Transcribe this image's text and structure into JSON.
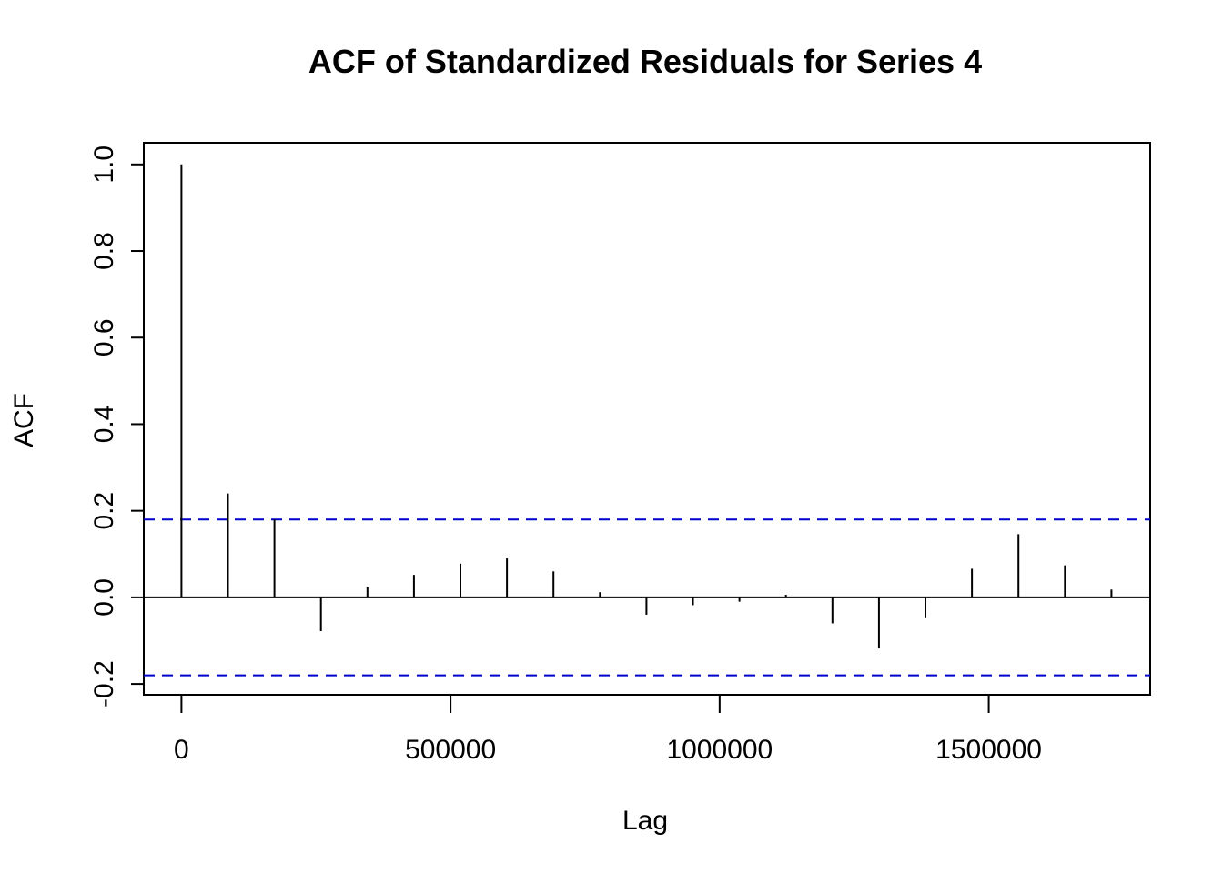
{
  "chart_data": {
    "type": "bar",
    "title": "ACF of Standardized Residuals for Series 4",
    "xlabel": "Lag",
    "ylabel": "ACF",
    "xlim": [
      -70000,
      1800000
    ],
    "ylim": [
      -0.225,
      1.05
    ],
    "x_ticks": [
      0,
      500000,
      1000000,
      1500000
    ],
    "x_tick_labels": [
      "0",
      "500000",
      "1000000",
      "1500000"
    ],
    "y_ticks": [
      -0.2,
      0.0,
      0.2,
      0.4,
      0.6,
      0.8,
      1.0
    ],
    "y_tick_labels": [
      "-0.2",
      "0.0",
      "0.2",
      "0.4",
      "0.6",
      "0.8",
      "1.0"
    ],
    "lags": [
      0,
      86400,
      172800,
      259200,
      345600,
      432000,
      518400,
      604800,
      691200,
      777600,
      864000,
      950400,
      1036800,
      1123200,
      1209600,
      1296000,
      1382400,
      1468800,
      1555200,
      1641600,
      1728000
    ],
    "acf": [
      1.0,
      0.24,
      0.18,
      -0.078,
      0.025,
      0.052,
      0.078,
      0.09,
      0.06,
      0.012,
      -0.04,
      -0.018,
      -0.01,
      0.006,
      -0.06,
      -0.118,
      -0.048,
      0.066,
      0.146,
      0.074,
      0.018
    ],
    "confidence_bounds": [
      0.18,
      -0.18
    ],
    "colors": {
      "bars": "#000000",
      "bounds": "#0000cc",
      "zero_line": "#000000"
    },
    "grid": false
  }
}
